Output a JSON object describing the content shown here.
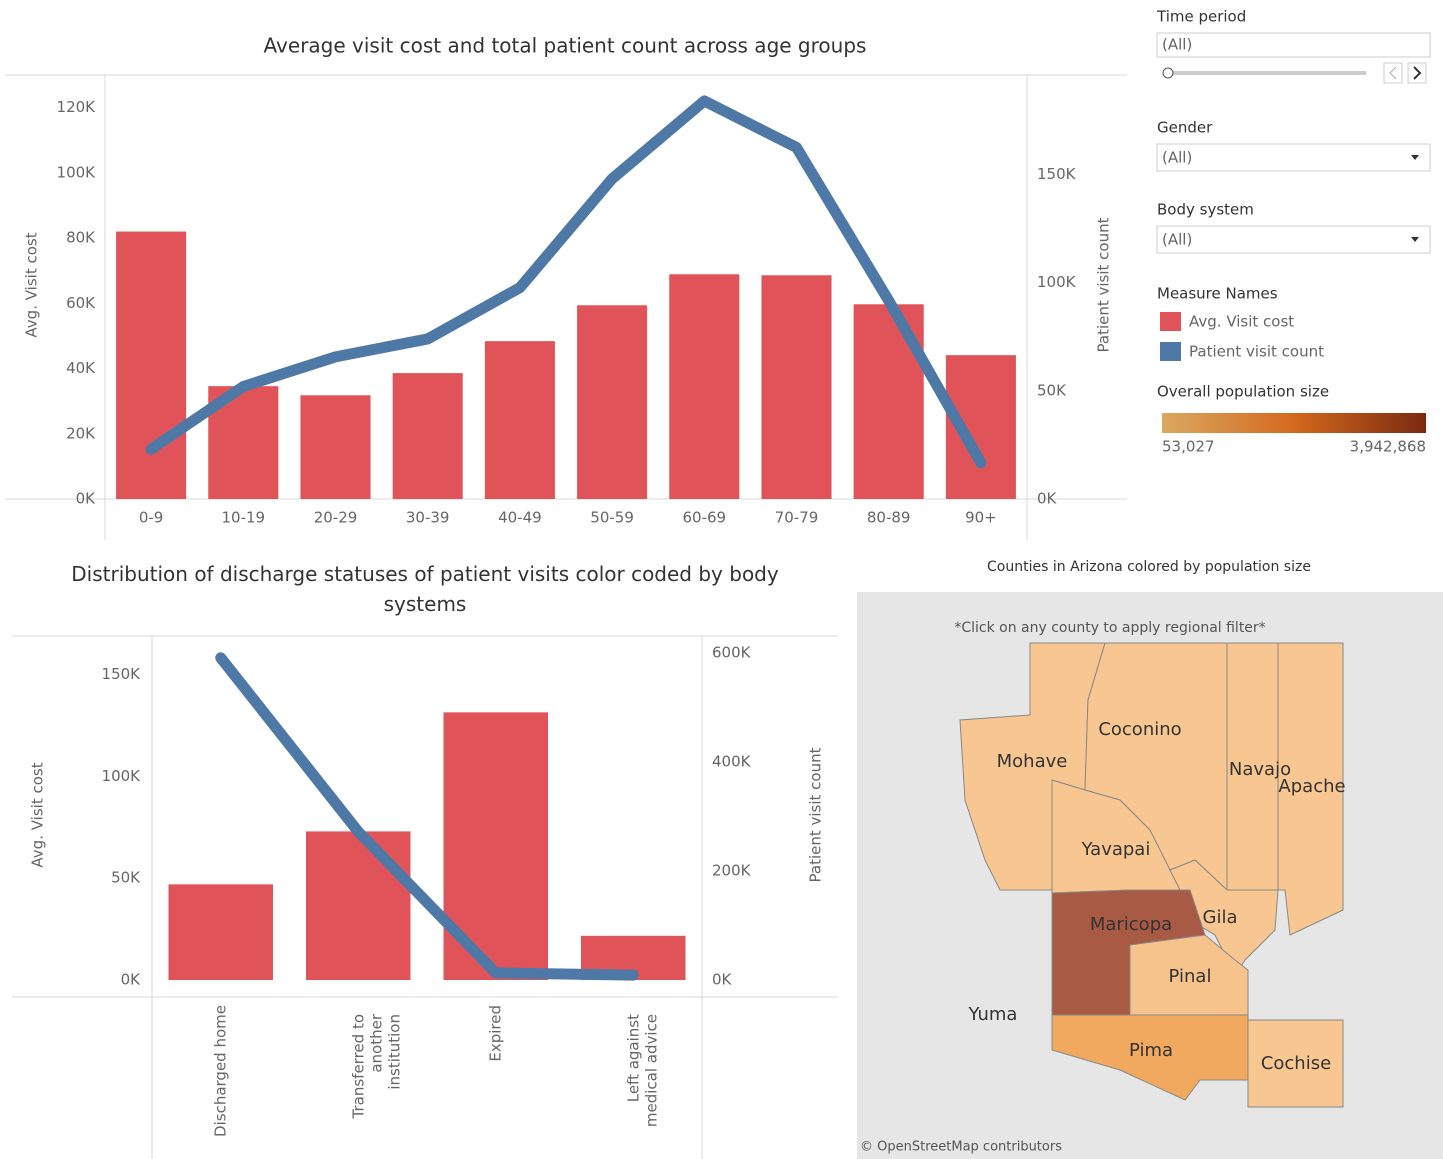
{
  "chart_data": [
    {
      "type": "combo",
      "title": "Average visit cost and total patient count across age groups",
      "ylabel": "Avg. Visit cost",
      "y2label": "Patient visit count",
      "categories": [
        "0-9",
        "10-19",
        "20-29",
        "30-39",
        "40-49",
        "50-59",
        "60-69",
        "70-79",
        "80-89",
        "90+"
      ],
      "series": [
        {
          "name": "Avg. Visit cost",
          "kind": "bar",
          "color": "#e05459",
          "values": [
            82000,
            34600,
            31800,
            38600,
            48400,
            59400,
            68900,
            68600,
            59700,
            44100
          ]
        },
        {
          "name": "Patient visit count",
          "kind": "line",
          "axis": "y2",
          "color": "#4e79a7",
          "values": [
            23000,
            52000,
            65700,
            74000,
            97700,
            148000,
            184000,
            162500,
            91700,
            16700
          ]
        }
      ],
      "ylim": [
        0,
        130000
      ],
      "yticks": [
        {
          "value": 0,
          "label": "0K"
        },
        {
          "value": 20000,
          "label": "20K"
        },
        {
          "value": 40000,
          "label": "40K"
        },
        {
          "value": 60000,
          "label": "60K"
        },
        {
          "value": 80000,
          "label": "80K"
        },
        {
          "value": 100000,
          "label": "100K"
        },
        {
          "value": 120000,
          "label": "120K"
        }
      ],
      "y2lim": [
        0,
        196000
      ],
      "y2ticks": [
        {
          "value": 0,
          "label": "0K"
        },
        {
          "value": 50000,
          "label": "50K"
        },
        {
          "value": 100000,
          "label": "100K"
        },
        {
          "value": 150000,
          "label": "150K"
        }
      ]
    },
    {
      "type": "combo",
      "title": "Distribution of discharge statuses of patient visits color coded by body systems",
      "ylabel": "Avg. Visit cost",
      "y2label": "Patient visit count",
      "categories": [
        "Discharged home",
        "Transferred to another institution",
        "Expired",
        "Left against medical advice"
      ],
      "series": [
        {
          "name": "Avg. Visit cost",
          "kind": "bar",
          "color": "#e05459",
          "values": [
            47000,
            73000,
            131500,
            21700
          ]
        },
        {
          "name": "Patient visit count",
          "kind": "line",
          "axis": "y2",
          "color": "#4e79a7",
          "values": [
            591000,
            272000,
            13000,
            9000
          ]
        }
      ],
      "ylim": [
        0,
        169000
      ],
      "yticks": [
        {
          "value": 0,
          "label": "0K"
        },
        {
          "value": 50000,
          "label": "50K"
        },
        {
          "value": 100000,
          "label": "100K"
        },
        {
          "value": 150000,
          "label": "150K"
        }
      ],
      "y2lim": [
        0,
        631000
      ],
      "y2ticks": [
        {
          "value": 0,
          "label": "0K"
        },
        {
          "value": 200000,
          "label": "200K"
        },
        {
          "value": 400000,
          "label": "400K"
        },
        {
          "value": 600000,
          "label": "600K"
        }
      ]
    }
  ],
  "filters": {
    "time_period": {
      "label": "Time period",
      "value": "(All)"
    },
    "gender": {
      "label": "Gender",
      "value": "(All)"
    },
    "body_system": {
      "label": "Body system",
      "value": "(All)"
    }
  },
  "legend": {
    "title": "Measure Names"
  },
  "population_legend": {
    "title": "Overall population size",
    "min_label": "53,027",
    "max_label": "3,942,868"
  },
  "map": {
    "title": "Counties in Arizona colored by population size",
    "note": "*Click on any county to apply regional filter*",
    "counties": [
      "Mohave",
      "Coconino",
      "Navajo",
      "Apache",
      "Yavapai",
      "Gila",
      "Maricopa",
      "Pinal",
      "Yuma",
      "Pima",
      "Cochise"
    ],
    "attribution": "© OpenStreetMap contributors"
  }
}
